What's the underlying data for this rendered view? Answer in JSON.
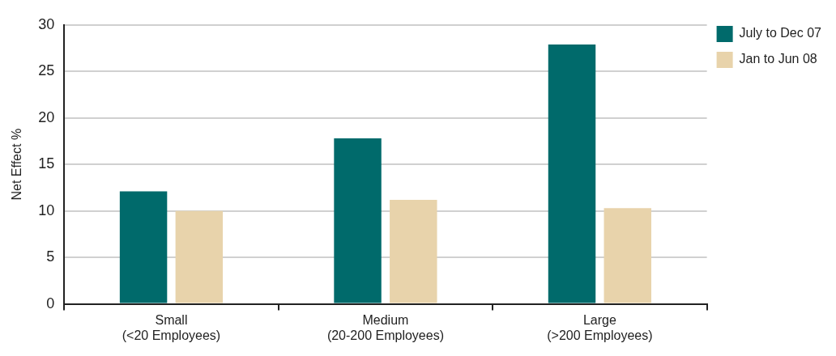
{
  "chart_data": {
    "type": "bar",
    "ylabel": "Net Effect %",
    "categories": [
      "Small\n(<20 Employees)",
      "Medium\n(20-200 Employees)",
      "Large\n(>200 Employees)"
    ],
    "series": [
      {
        "name": "July to Dec 07",
        "color": "#006a6b",
        "values": [
          12.1,
          17.8,
          27.9
        ]
      },
      {
        "name": "Jan to Jun 08",
        "color": "#e8d3ab",
        "values": [
          10,
          11.2,
          10.3
        ]
      }
    ],
    "ylim": [
      0,
      30
    ],
    "yticks": [
      0,
      5,
      10,
      15,
      20,
      25,
      30
    ],
    "grid": "y",
    "legend": "top right"
  }
}
